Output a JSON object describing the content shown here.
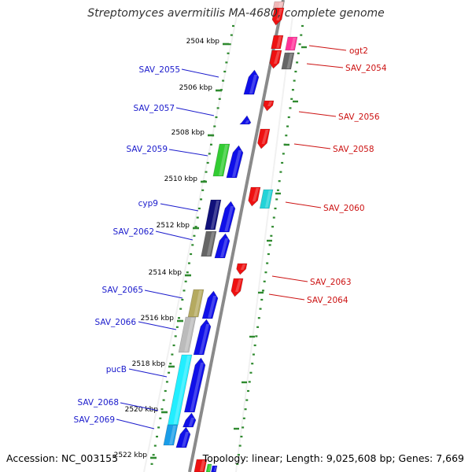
{
  "title": "Streptomyces avermitilis MA-4680, complete genome",
  "footer": {
    "accession": "Accession: NC_003155",
    "topology": "Topology: linear; Length: 9,025,608 bp; Genes: 7,669"
  },
  "colors": {
    "axis": "#888888",
    "tick": "#2f8a2f",
    "forward_label": "#1a1acc",
    "reverse_label": "#cc1111"
  },
  "kbp_ticks": [
    {
      "text": "2504 kbp"
    },
    {
      "text": "2506 kbp"
    },
    {
      "text": "2508 kbp"
    },
    {
      "text": "2510 kbp"
    },
    {
      "text": "2512 kbp"
    },
    {
      "text": "2514 kbp"
    },
    {
      "text": "2516 kbp"
    },
    {
      "text": "2518 kbp"
    },
    {
      "text": "2520 kbp"
    },
    {
      "text": "2522 kbp"
    }
  ],
  "left_labels": [
    {
      "text": "SAV_2055"
    },
    {
      "text": "SAV_2057"
    },
    {
      "text": "SAV_2059"
    },
    {
      "text": "cyp9"
    },
    {
      "text": "SAV_2062"
    },
    {
      "text": "SAV_2065"
    },
    {
      "text": "SAV_2066"
    },
    {
      "text": "pucB"
    },
    {
      "text": "SAV_2068"
    },
    {
      "text": "SAV_2069"
    }
  ],
  "right_labels": [
    {
      "text": "ogt2"
    },
    {
      "text": "SAV_2054"
    },
    {
      "text": "SAV_2056"
    },
    {
      "text": "SAV_2058"
    },
    {
      "text": "SAV_2060"
    },
    {
      "text": "SAV_2063"
    },
    {
      "text": "SAV_2064"
    }
  ]
}
